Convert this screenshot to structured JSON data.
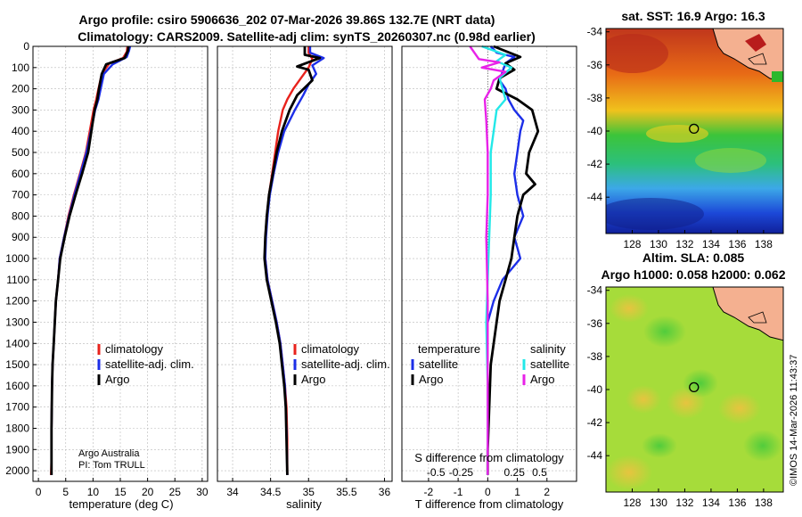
{
  "header": {
    "line1": "Argo profile: csiro 5906636_202 07-Mar-2026 39.86S 132.7E (NRT data)",
    "line2": "Climatology: CARS2009. Satellite-adj clim: synTS_20260307.nc (0.98d earlier)"
  },
  "credit": {
    "line1": "Argo Australia",
    "line2": "PI: Tom TRULL"
  },
  "watermark": "©IMOS 14-Mar-2026 11:43:37",
  "colors": {
    "climatology": "#e8221c",
    "satellite": "#1c2ee8",
    "argo": "#000000",
    "sal_sat": "#22e8e8",
    "sal_argo": "#e822e8"
  },
  "chart_data": [
    {
      "type": "line",
      "id": "temperature",
      "xlabel": "temperature (deg C)",
      "ylabel": "",
      "xlim": [
        -1,
        31
      ],
      "ylim": [
        2050,
        0
      ],
      "xticks": [
        0,
        5,
        10,
        15,
        20,
        25,
        30
      ],
      "xtick_labels": [
        "0",
        "5",
        "10",
        "15",
        "20",
        "25",
        "30"
      ],
      "yticks": [
        0,
        100,
        200,
        300,
        400,
        500,
        600,
        700,
        800,
        900,
        1000,
        1100,
        1200,
        1300,
        1400,
        1500,
        1600,
        1700,
        1800,
        1900,
        2000
      ],
      "ytick_labels": [
        "0",
        "100",
        "200",
        "300",
        "400",
        "500",
        "600",
        "700",
        "800",
        "900",
        "1000",
        "1100",
        "1200",
        "1300",
        "1400",
        "1500",
        "1600",
        "1700",
        "1800",
        "1900",
        "2000"
      ],
      "legend": [
        "climatology",
        "satellite-adj. clim.",
        "Argo"
      ],
      "series": [
        {
          "name": "climatology",
          "color": "#e8221c",
          "x": [
            16.3,
            16.2,
            15.5,
            13.0,
            11.6,
            11.0,
            10.6,
            10.1,
            9.4,
            8.7,
            7.6,
            6.5,
            5.5,
            4.7,
            3.9,
            3.6,
            3.2,
            3.0,
            2.8,
            2.6,
            2.5,
            2.4,
            2.4,
            2.3
          ],
          "y": [
            0,
            25,
            55,
            80,
            130,
            200,
            250,
            300,
            400,
            500,
            600,
            700,
            800,
            900,
            1000,
            1100,
            1200,
            1300,
            1400,
            1500,
            1600,
            1800,
            1950,
            2020
          ]
        },
        {
          "name": "satellite-adj. clim.",
          "color": "#1c2ee8",
          "x": [
            16.8,
            16.6,
            16.2,
            13.6,
            12.0,
            11.4,
            11.0,
            10.4,
            9.6,
            8.8,
            7.7,
            6.6,
            5.6,
            4.7,
            3.9,
            3.6,
            3.2,
            3.0,
            2.8,
            2.6,
            2.5,
            2.4,
            2.4
          ],
          "y": [
            0,
            20,
            50,
            85,
            130,
            200,
            250,
            300,
            400,
            500,
            600,
            700,
            800,
            900,
            1000,
            1100,
            1200,
            1300,
            1400,
            1500,
            1600,
            1800,
            2020
          ]
        },
        {
          "name": "Argo",
          "color": "#000000",
          "x": [
            16.5,
            16.4,
            15.8,
            12.4,
            11.6,
            11.1,
            10.8,
            10.3,
            9.7,
            9.1,
            8.0,
            6.8,
            5.7,
            4.8,
            4.0,
            3.6,
            3.2,
            3.0,
            2.8,
            2.6,
            2.5,
            2.4,
            2.4
          ],
          "y": [
            0,
            20,
            55,
            85,
            130,
            200,
            250,
            300,
            400,
            500,
            600,
            700,
            800,
            900,
            1000,
            1100,
            1200,
            1300,
            1400,
            1500,
            1600,
            1800,
            2020
          ]
        }
      ]
    },
    {
      "type": "line",
      "id": "salinity",
      "xlabel": "salinity",
      "ylabel": "",
      "xlim": [
        33.8,
        36.1
      ],
      "ylim": [
        2050,
        0
      ],
      "xticks": [
        34,
        34.5,
        35,
        35.5,
        36
      ],
      "xtick_labels": [
        "34",
        "34.5",
        "35",
        "35.5",
        "36"
      ],
      "legend": [
        "climatology",
        "satellite-adj. clim.",
        "Argo"
      ],
      "series": [
        {
          "name": "climatology",
          "color": "#e8221c",
          "x": [
            35.0,
            35.0,
            35.05,
            35.0,
            34.9,
            34.8,
            34.72,
            34.66,
            34.6,
            34.56,
            34.52,
            34.48,
            34.45,
            34.43,
            34.43,
            34.46,
            34.52,
            34.58,
            34.63,
            34.66,
            34.69,
            34.71,
            34.72,
            34.72
          ],
          "y": [
            0,
            30,
            60,
            100,
            150,
            200,
            250,
            300,
            400,
            500,
            600,
            700,
            800,
            900,
            1000,
            1100,
            1200,
            1300,
            1400,
            1500,
            1600,
            1700,
            1850,
            2020
          ]
        },
        {
          "name": "satellite-adj. clim.",
          "color": "#1c2ee8",
          "x": [
            35.02,
            35.02,
            35.2,
            35.05,
            35.1,
            35.0,
            34.93,
            34.82,
            34.68,
            34.6,
            34.54,
            34.49,
            34.46,
            34.44,
            34.43,
            34.46,
            34.52,
            34.58,
            34.63,
            34.66,
            34.69,
            34.71,
            34.72
          ],
          "y": [
            0,
            30,
            55,
            90,
            130,
            180,
            230,
            300,
            400,
            500,
            600,
            700,
            800,
            900,
            1000,
            1100,
            1200,
            1300,
            1400,
            1500,
            1600,
            1800,
            2020
          ]
        },
        {
          "name": "Argo",
          "color": "#000000",
          "x": [
            34.95,
            34.95,
            35.15,
            34.85,
            35.0,
            35.05,
            34.85,
            34.75,
            34.65,
            34.58,
            34.53,
            34.48,
            34.45,
            34.43,
            34.42,
            34.45,
            34.51,
            34.57,
            34.62,
            34.65,
            34.68,
            34.7,
            34.71,
            34.72
          ],
          "y": [
            0,
            40,
            55,
            95,
            110,
            160,
            230,
            300,
            400,
            500,
            600,
            700,
            800,
            900,
            1000,
            1100,
            1200,
            1300,
            1400,
            1500,
            1600,
            1700,
            1850,
            2020
          ]
        }
      ]
    },
    {
      "type": "line",
      "id": "difference",
      "xlabel": "T difference from climatology",
      "xlabel2": "S difference from climatology",
      "xlim": [
        -2.9,
        3.0
      ],
      "ylim": [
        2050,
        0
      ],
      "xticks": [
        -2,
        -1,
        0,
        1,
        2
      ],
      "xtick_labels": [
        "-2",
        "-1",
        "0",
        "1",
        "2"
      ],
      "sticks": [
        -1.75,
        -0.9,
        0.9,
        1.75
      ],
      "stick_labels": [
        "-0.5",
        "-0.25",
        "0.25",
        "0.5"
      ],
      "legend_groups": {
        "temperature": [
          "satellite",
          "Argo"
        ],
        "salinity": [
          "satellite",
          "Argo"
        ]
      },
      "series": [
        {
          "name": "temperature satellite",
          "color": "#1c2ee8",
          "x": [
            0.1,
            0.3,
            0.9,
            0.6,
            0.5,
            0.4,
            0.6,
            0.7,
            0.9,
            1.2,
            1.1,
            1.0,
            0.9,
            1.0,
            1.2,
            0.9,
            1.0,
            1.1,
            0.5,
            0.2,
            0.0,
            0.0,
            0.0,
            0.0,
            0.0,
            0.0
          ],
          "y": [
            0,
            30,
            50,
            80,
            120,
            160,
            200,
            250,
            300,
            350,
            400,
            500,
            600,
            700,
            800,
            900,
            950,
            1000,
            1100,
            1200,
            1300,
            1400,
            1500,
            1700,
            1900,
            2020
          ]
        },
        {
          "name": "temperature Argo",
          "color": "#000000",
          "x": [
            0.2,
            1.1,
            0.6,
            0.9,
            0.4,
            0.3,
            1.0,
            1.5,
            1.7,
            1.4,
            1.3,
            1.6,
            1.2,
            1.0,
            0.9,
            0.8,
            0.6,
            0.4,
            0.3,
            0.2,
            0.1,
            0.05,
            0.0,
            0.0
          ],
          "y": [
            0,
            50,
            80,
            110,
            150,
            200,
            250,
            300,
            400,
            500,
            600,
            650,
            700,
            800,
            900,
            1000,
            1100,
            1200,
            1300,
            1400,
            1500,
            1700,
            1900,
            2020
          ]
        },
        {
          "name": "salinity satellite",
          "color": "#22e8e8",
          "x": [
            -0.2,
            0.6,
            0.3,
            0.8,
            0.4,
            0.5,
            0.6,
            0.3,
            0.2,
            0.1,
            0.1,
            0.05,
            0.0,
            -0.05,
            0.0,
            0.0
          ],
          "y": [
            0,
            40,
            70,
            100,
            150,
            200,
            250,
            300,
            400,
            500,
            700,
            900,
            1100,
            1300,
            1600,
            2020
          ]
        },
        {
          "name": "salinity Argo",
          "color": "#e822e8",
          "x": [
            -0.6,
            -0.3,
            0.4,
            -0.2,
            0.6,
            0.2,
            0.1,
            -0.1,
            -0.05,
            0.0,
            0.0,
            -0.05,
            0.0,
            0.0
          ],
          "y": [
            0,
            60,
            75,
            100,
            120,
            160,
            200,
            250,
            350,
            500,
            700,
            900,
            1200,
            2020
          ]
        }
      ]
    },
    {
      "type": "heatmap",
      "id": "sst_map",
      "title": "sat. SST: 16.9 Argo: 16.3",
      "xlim": [
        126,
        139.5
      ],
      "ylim": [
        -46.2,
        -33.8
      ],
      "xticks": [
        128,
        130,
        132,
        134,
        136,
        138
      ],
      "xtick_labels": [
        "128",
        "130",
        "132",
        "134",
        "136",
        "138"
      ],
      "yticks": [
        -34,
        -36,
        -38,
        -40,
        -42,
        -44
      ],
      "ytick_labels": [
        "-34",
        "-36",
        "-38",
        "-40",
        "-42",
        "-44"
      ],
      "marker": {
        "lon": 132.7,
        "lat": -39.86
      }
    },
    {
      "type": "heatmap",
      "id": "sla_map",
      "title": "Altim. SLA: 0.085",
      "subtitle": "Argo h1000: 0.058 h2000: 0.062",
      "xlim": [
        126,
        139.5
      ],
      "ylim": [
        -46.2,
        -33.8
      ],
      "xticks": [
        128,
        130,
        132,
        134,
        136,
        138
      ],
      "xtick_labels": [
        "128",
        "130",
        "132",
        "134",
        "136",
        "138"
      ],
      "yticks": [
        -34,
        -36,
        -38,
        -40,
        -42,
        -44
      ],
      "ytick_labels": [
        "-34",
        "-36",
        "-38",
        "-40",
        "-42",
        "-44"
      ],
      "marker": {
        "lon": 132.7,
        "lat": -39.86
      }
    }
  ]
}
